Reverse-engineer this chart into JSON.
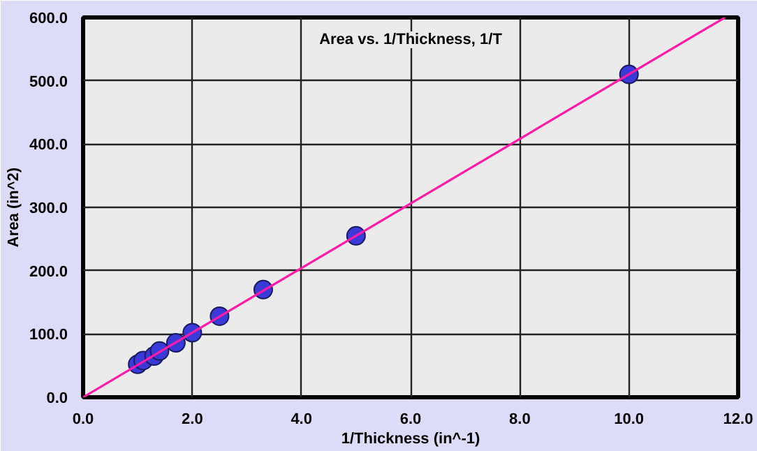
{
  "chart_data": {
    "type": "scatter",
    "title": "Area vs. 1/Thickness, 1/T",
    "xlabel": "1/Thickness (in^-1)",
    "ylabel": "Area (in^2)",
    "xlim": [
      0,
      12
    ],
    "ylim": [
      0,
      600
    ],
    "xticks": [
      {
        "value": 0,
        "label": "0.0"
      },
      {
        "value": 2,
        "label": "2.0"
      },
      {
        "value": 4,
        "label": "4.0"
      },
      {
        "value": 6,
        "label": "6.0"
      },
      {
        "value": 8,
        "label": "8.0"
      },
      {
        "value": 10,
        "label": "10.0"
      },
      {
        "value": 12,
        "label": "12.0"
      }
    ],
    "yticks": [
      {
        "value": 0,
        "label": "0.0"
      },
      {
        "value": 100,
        "label": "100.0"
      },
      {
        "value": 200,
        "label": "200.0"
      },
      {
        "value": 300,
        "label": "300.0"
      },
      {
        "value": 400,
        "label": "400.0"
      },
      {
        "value": 500,
        "label": "500.0"
      },
      {
        "value": 600,
        "label": "600.0"
      }
    ],
    "grid": true,
    "series": [
      {
        "marker": "circle",
        "color": "#3a3ad8",
        "x": [
          1.0,
          1.1,
          1.3,
          1.4,
          1.7,
          2.0,
          2.5,
          3.3,
          5.0,
          10.0
        ],
        "values": [
          52,
          58,
          65,
          73,
          86,
          102,
          128,
          170,
          255,
          510
        ]
      },
      {
        "type": "line",
        "color": "#ff1aa8",
        "x": [
          0,
          11.76
        ],
        "values": [
          0,
          600
        ],
        "line_style": "solid"
      }
    ]
  }
}
